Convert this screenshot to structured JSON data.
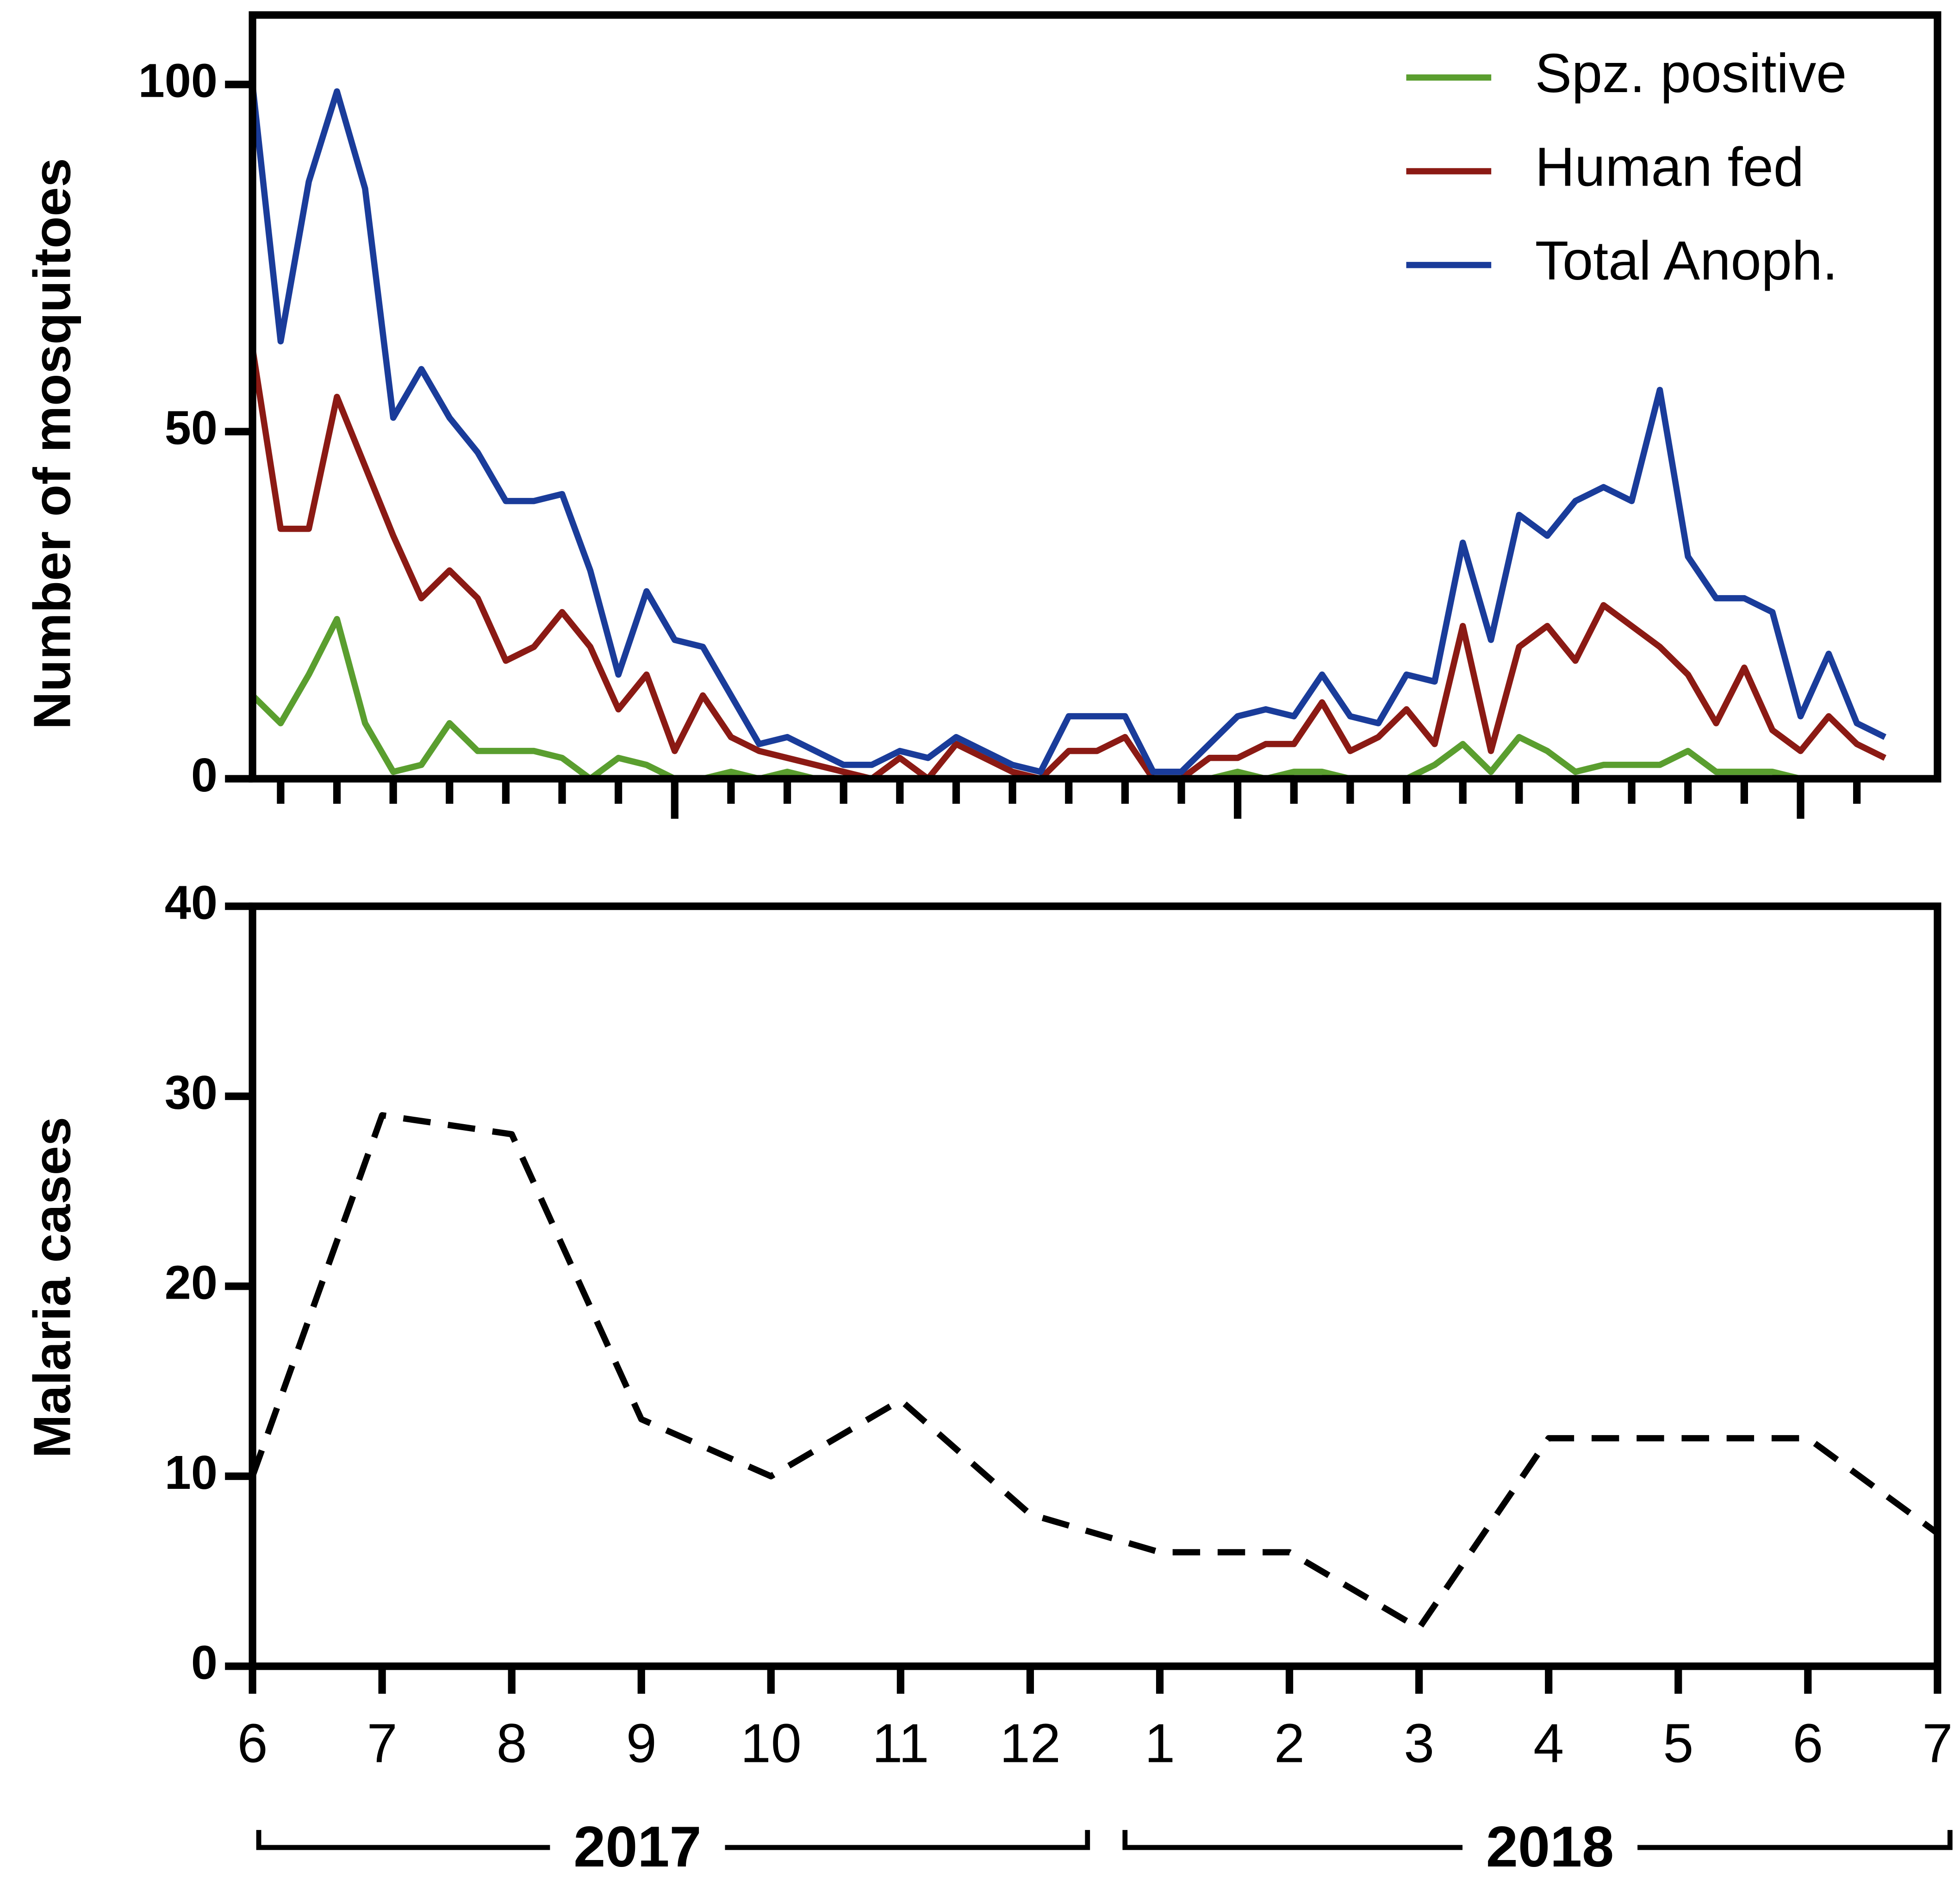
{
  "chart_data": [
    {
      "type": "line",
      "y_label": "Number of mosquitoes",
      "legend": "upper right",
      "categories": [
        null,
        null,
        null,
        null,
        null,
        null,
        null,
        null,
        null,
        null,
        null,
        null,
        null,
        null,
        null,
        null,
        null,
        null,
        null,
        null,
        null,
        null,
        null,
        null,
        null,
        null,
        null,
        null,
        null,
        null,
        null,
        null,
        null,
        null,
        null,
        null,
        null,
        null,
        null,
        null,
        null,
        null,
        null,
        null,
        null,
        null,
        null,
        null,
        null,
        null,
        null,
        null,
        null,
        null,
        null,
        null,
        null,
        null,
        null
      ],
      "ylim": [
        0,
        110
      ],
      "yticks": [
        0,
        50,
        100
      ],
      "series": [
        {
          "name": "Spz. positive",
          "color": "#5a9e2f",
          "values": [
            12,
            8,
            15,
            23,
            8,
            1,
            2,
            8,
            4,
            4,
            4,
            3,
            0,
            3,
            2,
            0,
            0,
            1,
            0,
            1,
            0,
            0,
            0,
            0,
            0,
            0,
            0,
            0,
            0,
            0,
            0,
            0,
            0,
            0,
            0,
            1,
            0,
            1,
            1,
            0,
            0,
            0,
            2,
            5,
            1,
            6,
            4,
            1,
            2,
            2,
            2,
            4,
            1,
            1,
            1,
            0,
            0,
            0,
            0
          ]
        },
        {
          "name": "Human fed",
          "color": "#8b1a14",
          "values": [
            62,
            36,
            36,
            55,
            45,
            35,
            26,
            30,
            26,
            17,
            19,
            24,
            19,
            10,
            15,
            4,
            12,
            6,
            4,
            3,
            2,
            1,
            0,
            3,
            0,
            5,
            3,
            1,
            0,
            4,
            4,
            6,
            0,
            0,
            3,
            3,
            5,
            5,
            11,
            4,
            6,
            10,
            5,
            22,
            4,
            19,
            22,
            17,
            25,
            22,
            19,
            15,
            8,
            16,
            7,
            4,
            9,
            5,
            3
          ]
        },
        {
          "name": "Total Anoph.",
          "color": "#1a3c9a",
          "values": [
            100,
            63,
            86,
            99,
            85,
            52,
            59,
            52,
            47,
            40,
            40,
            41,
            30,
            15,
            27,
            20,
            19,
            12,
            5,
            6,
            4,
            2,
            2,
            4,
            3,
            6,
            4,
            2,
            1,
            9,
            9,
            9,
            1,
            1,
            5,
            9,
            10,
            9,
            15,
            9,
            8,
            15,
            14,
            34,
            20,
            38,
            35,
            40,
            42,
            40,
            56,
            32,
            26,
            26,
            24,
            9,
            18,
            8,
            6
          ]
        }
      ]
    },
    {
      "type": "line",
      "y_label": "Malaria cases",
      "categories": [
        "6",
        "7",
        "8",
        "9",
        "10",
        "11",
        "12",
        "1",
        "2",
        "3",
        "4",
        "5",
        "6",
        "7"
      ],
      "ylim": [
        0,
        40
      ],
      "yticks": [
        0,
        10,
        20,
        30,
        40
      ],
      "series": [
        {
          "color": "#000000",
          "dashed": true,
          "values": [
            10,
            29,
            28,
            13,
            10,
            14,
            8,
            6,
            6,
            2,
            12,
            12,
            12,
            7
          ]
        }
      ],
      "year_groups": [
        "2017",
        "2018"
      ]
    }
  ]
}
